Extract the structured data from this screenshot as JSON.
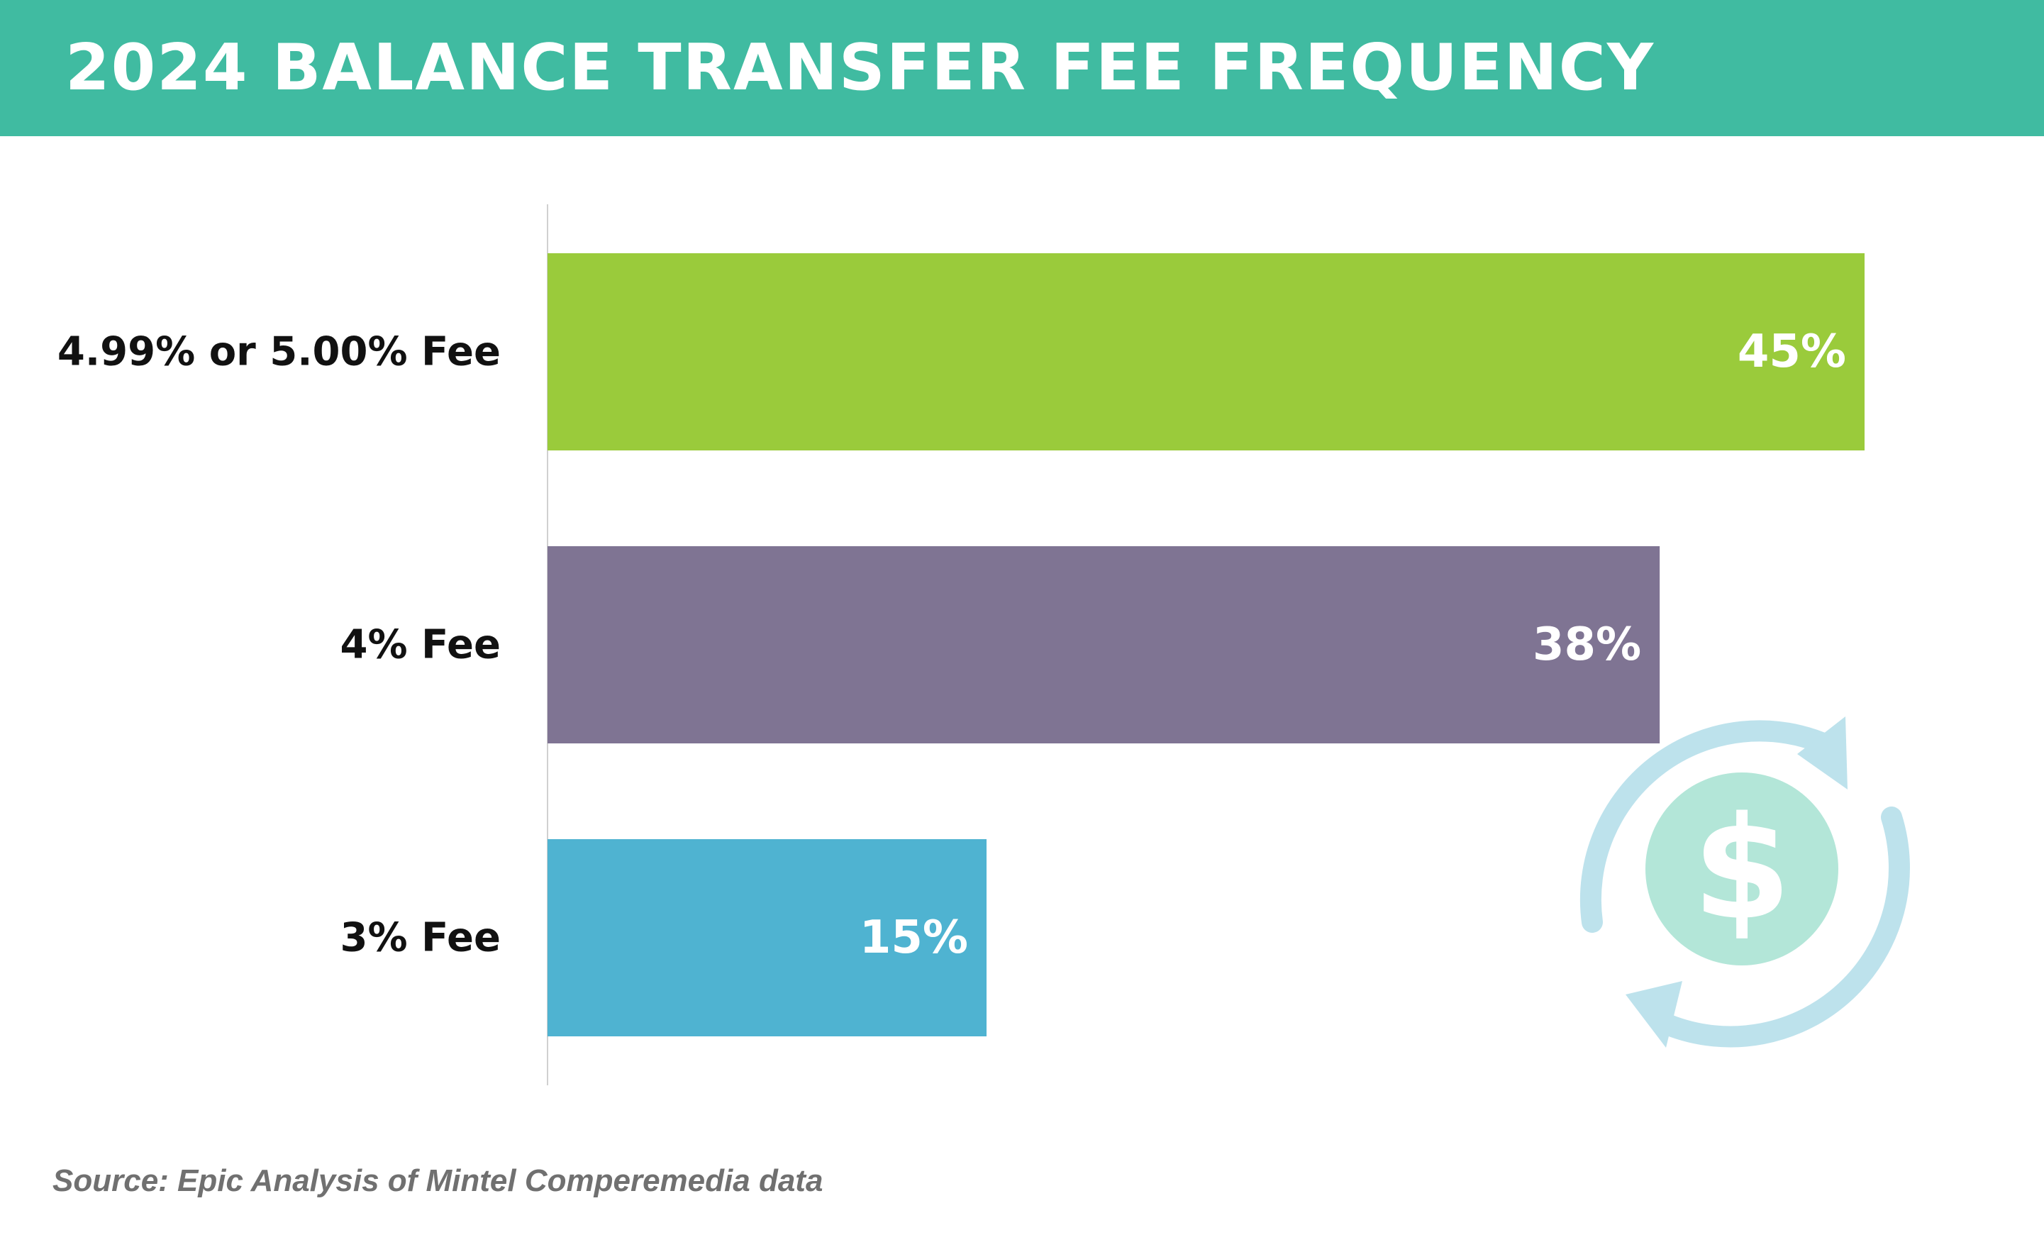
{
  "header": {
    "title": "2024 BALANCE TRANSFER FEE FREQUENCY"
  },
  "chart_data": {
    "type": "bar",
    "orientation": "horizontal",
    "title": "2024 BALANCE TRANSFER FEE FREQUENCY",
    "categories": [
      "4.99% or 5.00% Fee",
      "4% Fee",
      "3% Fee"
    ],
    "values": [
      45,
      38,
      15
    ],
    "value_labels": [
      "45%",
      "38%",
      "15%"
    ],
    "colors": [
      "#9ACB3B",
      "#7F7493",
      "#4FB3D1"
    ],
    "xlim": [
      0,
      45
    ],
    "grid": false,
    "legend": "none",
    "xlabel": "",
    "ylabel": ""
  },
  "footer": {
    "source": "Source: Epic Analysis of Mintel Comperemedia data"
  },
  "graphic": {
    "icon": "dollar-transfer-icon",
    "symbol": "$",
    "colors": {
      "arrows": "#BDE2EC",
      "coin": "#B3E6D8"
    }
  },
  "theme": {
    "header_color": "#40BBA1"
  }
}
